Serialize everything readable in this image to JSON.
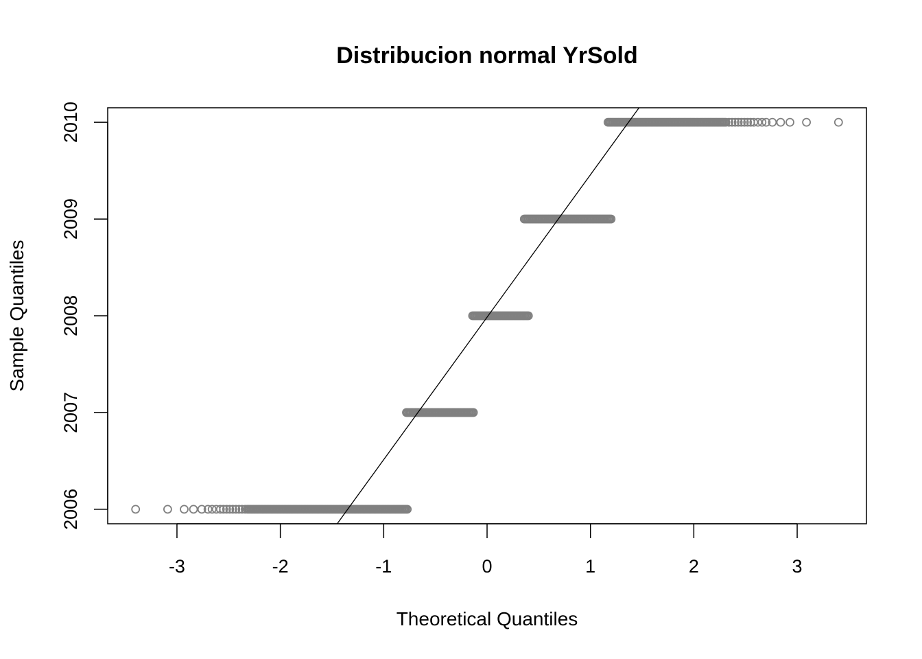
{
  "chart_data": {
    "type": "scatter",
    "title": "Distribucion normal YrSold",
    "xlabel": "Theoretical Quantiles",
    "ylabel": "Sample Quantiles",
    "xlim": [
      -3.67,
      3.67
    ],
    "ylim": [
      2005.85,
      2010.15
    ],
    "x_ticks": [
      -3,
      -2,
      -1,
      0,
      1,
      2,
      3
    ],
    "x_tick_labels": [
      "-3",
      "-2",
      "-1",
      "0",
      "1",
      "2",
      "3"
    ],
    "y_ticks": [
      2006,
      2007,
      2008,
      2009,
      2010
    ],
    "y_tick_labels": [
      "2006",
      "2007",
      "2008",
      "2009",
      "2010"
    ],
    "point_color": "#808080",
    "line_color": "#000000",
    "reference_line": {
      "x1": -1.45,
      "y1": 2005.85,
      "x2": 1.47,
      "y2": 2010.15
    },
    "groups": [
      {
        "y": 2006,
        "outliers": [
          -3.4,
          -3.09,
          -2.93,
          -2.84,
          -2.76,
          -2.7,
          -2.66,
          -2.62,
          -2.58,
          -2.55,
          -2.52,
          -2.49,
          -2.46,
          -2.43,
          -2.4,
          -2.37,
          -2.34
        ],
        "dense_from": -2.32,
        "dense_to": -0.77
      },
      {
        "y": 2007,
        "outliers": [],
        "dense_from": -0.78,
        "dense_to": -0.13
      },
      {
        "y": 2008,
        "outliers": [],
        "dense_from": -0.14,
        "dense_to": 0.4
      },
      {
        "y": 2009,
        "outliers": [],
        "dense_from": 0.36,
        "dense_to": 1.2
      },
      {
        "y": 2010,
        "outliers": [
          2.34,
          2.37,
          2.4,
          2.43,
          2.46,
          2.49,
          2.52,
          2.55,
          2.58,
          2.62,
          2.66,
          2.7,
          2.76,
          2.84,
          2.93,
          3.09,
          3.4
        ],
        "dense_from": 1.17,
        "dense_to": 2.32
      }
    ]
  }
}
